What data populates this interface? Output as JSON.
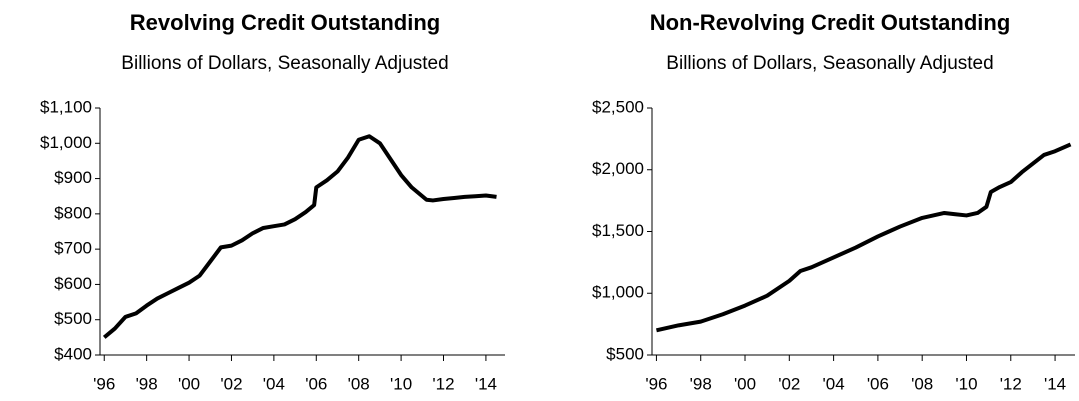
{
  "chart_data": [
    {
      "type": "line",
      "title": "Revolving Credit Outstanding",
      "subtitle": "Billions of Dollars, Seasonally Adjusted",
      "x": [
        1996,
        1996.5,
        1997,
        1997.5,
        1998,
        1998.5,
        1999,
        1999.5,
        2000,
        2000.5,
        2001,
        2001.5,
        2002,
        2002.5,
        2003,
        2003.5,
        2004,
        2004.5,
        2005,
        2005.5,
        2005.9,
        2006,
        2006.5,
        2007,
        2007.5,
        2008,
        2008.5,
        2009,
        2009.5,
        2010,
        2010.5,
        2011.2,
        2011.5,
        2012,
        2012.5,
        2013,
        2013.5,
        2014,
        2014.5
      ],
      "series": [
        {
          "name": "Revolving",
          "color": "#000000",
          "values": [
            450,
            475,
            508,
            518,
            540,
            560,
            575,
            590,
            605,
            625,
            665,
            705,
            710,
            725,
            745,
            760,
            765,
            770,
            785,
            805,
            825,
            875,
            895,
            920,
            960,
            1010,
            1020,
            1000,
            955,
            910,
            875,
            840,
            838,
            842,
            845,
            848,
            850,
            852,
            848
          ]
        }
      ],
      "xlim": [
        1995.8,
        2014.9
      ],
      "xticks": [
        {
          "value": 1996,
          "label": "'96"
        },
        {
          "value": 1998,
          "label": "'98"
        },
        {
          "value": 2000,
          "label": "'00"
        },
        {
          "value": 2002,
          "label": "'02"
        },
        {
          "value": 2004,
          "label": "'04"
        },
        {
          "value": 2006,
          "label": "'06"
        },
        {
          "value": 2008,
          "label": "'08"
        },
        {
          "value": 2010,
          "label": "'10"
        },
        {
          "value": 2012,
          "label": "'12"
        },
        {
          "value": 2014,
          "label": "'14"
        }
      ],
      "ylim": [
        400,
        1100
      ],
      "yticks": [
        {
          "value": 400,
          "label": "$400"
        },
        {
          "value": 500,
          "label": "$500"
        },
        {
          "value": 600,
          "label": "$600"
        },
        {
          "value": 700,
          "label": "$700"
        },
        {
          "value": 800,
          "label": "$800"
        },
        {
          "value": 900,
          "label": "$900"
        },
        {
          "value": 1000,
          "label": "$1,000"
        },
        {
          "value": 1100,
          "label": "$1,100"
        }
      ]
    },
    {
      "type": "line",
      "title": "Non-Revolving Credit Outstanding",
      "subtitle": "Billions of Dollars, Seasonally Adjusted",
      "x": [
        1996,
        1997,
        1998,
        1999,
        2000,
        2001,
        2002,
        2002.5,
        2003,
        2004,
        2005,
        2006,
        2006.5,
        2007,
        2008,
        2009,
        2009.5,
        2010,
        2010.5,
        2010.9,
        2011.1,
        2011.5,
        2012,
        2012.5,
        2013,
        2013.5,
        2014,
        2014.7
      ],
      "series": [
        {
          "name": "Non-Revolving",
          "color": "#000000",
          "values": [
            700,
            740,
            770,
            830,
            900,
            980,
            1100,
            1180,
            1210,
            1290,
            1370,
            1460,
            1500,
            1540,
            1610,
            1650,
            1640,
            1630,
            1650,
            1700,
            1820,
            1860,
            1900,
            1980,
            2050,
            2120,
            2150,
            2205
          ]
        }
      ],
      "xlim": [
        1995.8,
        2014.9
      ],
      "xticks": [
        {
          "value": 1996,
          "label": "'96"
        },
        {
          "value": 1998,
          "label": "'98"
        },
        {
          "value": 2000,
          "label": "'00"
        },
        {
          "value": 2002,
          "label": "'02"
        },
        {
          "value": 2004,
          "label": "'04"
        },
        {
          "value": 2006,
          "label": "'06"
        },
        {
          "value": 2008,
          "label": "'08"
        },
        {
          "value": 2010,
          "label": "'10"
        },
        {
          "value": 2012,
          "label": "'12"
        },
        {
          "value": 2014,
          "label": "'14"
        }
      ],
      "ylim": [
        500,
        2500
      ],
      "yticks": [
        {
          "value": 500,
          "label": "$500"
        },
        {
          "value": 1000,
          "label": "$1,000"
        },
        {
          "value": 1500,
          "label": "$1,500"
        },
        {
          "value": 2000,
          "label": "$2,000"
        },
        {
          "value": 2500,
          "label": "$2,500"
        }
      ]
    }
  ]
}
